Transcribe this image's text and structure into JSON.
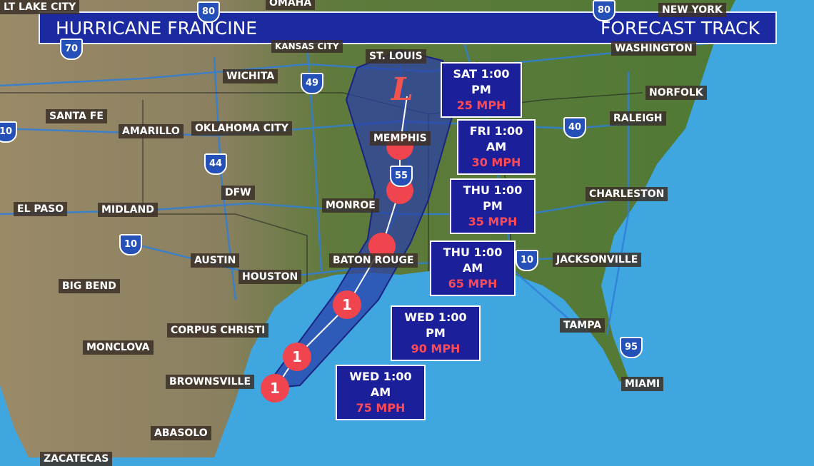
{
  "header": {
    "title": "HURRICANE FRANCINE",
    "subtitle": "FORECAST TRACK"
  },
  "colors": {
    "banner": "#1b2aa0",
    "forecast_box": "#1b1f9a",
    "wind_speed": "#ff4a55",
    "storm_icon": "#f0444e",
    "cone": "#2a3fa8",
    "ocean": "#3fa6e0"
  },
  "cities": [
    "LT LAKE CITY",
    "OMAHA",
    "NEW YORK",
    "KANSAS CITY",
    "ST. LOUIS",
    "WASHINGTON",
    "WICHITA",
    "NORFOLK",
    "SANTA FE",
    "AMARILLO",
    "OKLAHOMA CITY",
    "MEMPHIS",
    "RALEIGH",
    "DFW",
    "MONROE",
    "CHARLESTON",
    "EL PASO",
    "MIDLAND",
    "AUSTIN",
    "BATON ROUGE",
    "JACKSONVILLE",
    "HOUSTON",
    "BIG BEND",
    "CORPUS CHRISTI",
    "TAMPA",
    "MONCLOVA",
    "BROWNSVILLE",
    "MIAMI",
    "ABASOLO",
    "ZACATECAS"
  ],
  "highways": [
    "80",
    "70",
    "49",
    "44",
    "55",
    "40",
    "10",
    "10",
    "95",
    "80",
    "10"
  ],
  "forecast": [
    {
      "time": "SAT 1:00 PM",
      "wind": "25 MPH",
      "marker": "L"
    },
    {
      "time": "FRI 1:00 AM",
      "wind": "30 MPH",
      "marker": ""
    },
    {
      "time": "THU 1:00 PM",
      "wind": "35 MPH",
      "marker": ""
    },
    {
      "time": "THU 1:00 AM",
      "wind": "65 MPH",
      "marker": ""
    },
    {
      "time": "WED 1:00 PM",
      "wind": "90 MPH",
      "marker": "1"
    },
    {
      "time": "WED 1:00 AM",
      "wind": "75 MPH",
      "marker": "1"
    }
  ],
  "storm_markers": [
    "1",
    "1",
    "1",
    "L"
  ]
}
